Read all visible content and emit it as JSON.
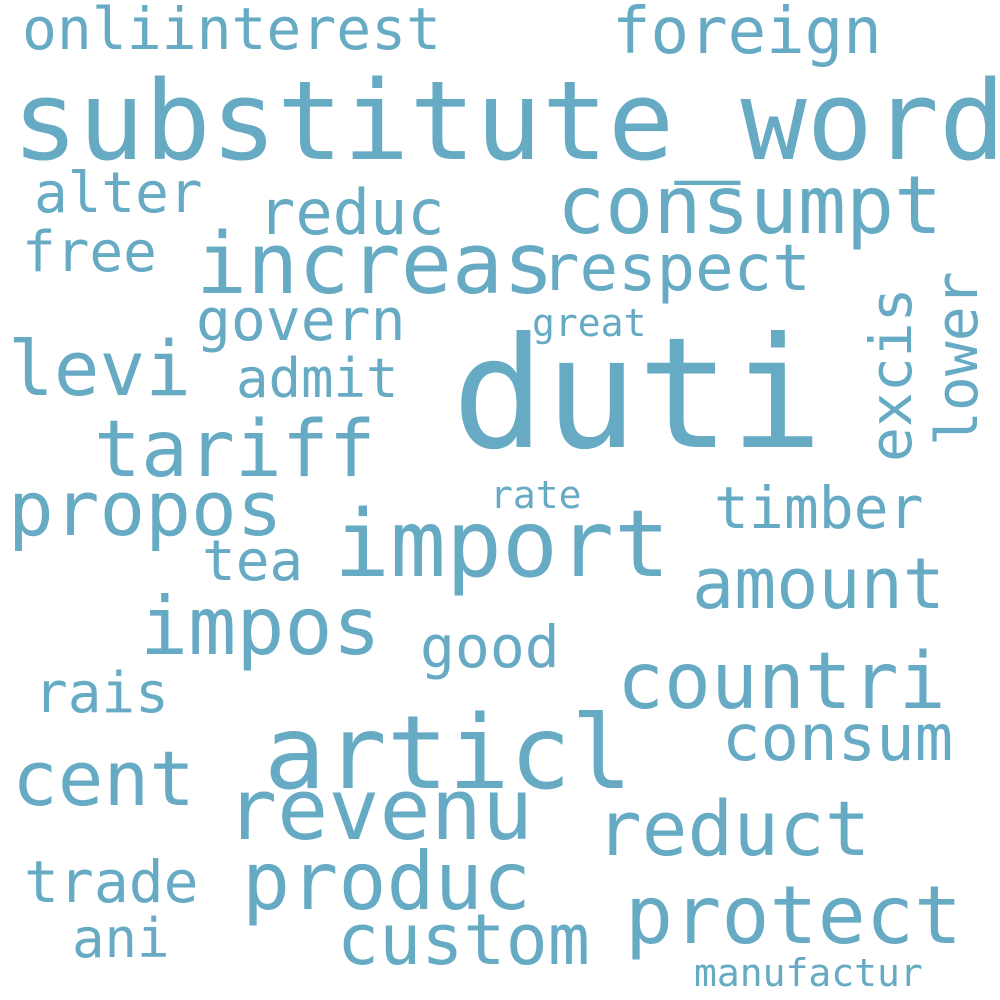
{
  "cloud": {
    "color": "#66aac4",
    "background": "#ffffff",
    "words": [
      {
        "text": "duti"
      },
      {
        "text": "substitute_word"
      },
      {
        "text": "articl"
      },
      {
        "text": "import"
      },
      {
        "text": "increas"
      },
      {
        "text": "revenu"
      },
      {
        "text": "consumpt"
      },
      {
        "text": "protect"
      },
      {
        "text": "produc"
      },
      {
        "text": "impos"
      },
      {
        "text": "countri"
      },
      {
        "text": "tariff"
      },
      {
        "text": "propos"
      },
      {
        "text": "cent"
      },
      {
        "text": "reduct"
      },
      {
        "text": "custom"
      },
      {
        "text": "amount"
      },
      {
        "text": "levi"
      },
      {
        "text": "respect"
      },
      {
        "text": "foreign"
      },
      {
        "text": "consum"
      },
      {
        "text": "reduc"
      },
      {
        "text": "timber"
      },
      {
        "text": "onliinterest"
      },
      {
        "text": "trade"
      },
      {
        "text": "good"
      },
      {
        "text": "govern"
      },
      {
        "text": "excis"
      },
      {
        "text": "lower"
      },
      {
        "text": "rais"
      },
      {
        "text": "alter"
      },
      {
        "text": "free"
      },
      {
        "text": "admit"
      },
      {
        "text": "tea"
      },
      {
        "text": "ani"
      },
      {
        "text": "manufactur"
      },
      {
        "text": "great"
      },
      {
        "text": "rate"
      }
    ]
  }
}
